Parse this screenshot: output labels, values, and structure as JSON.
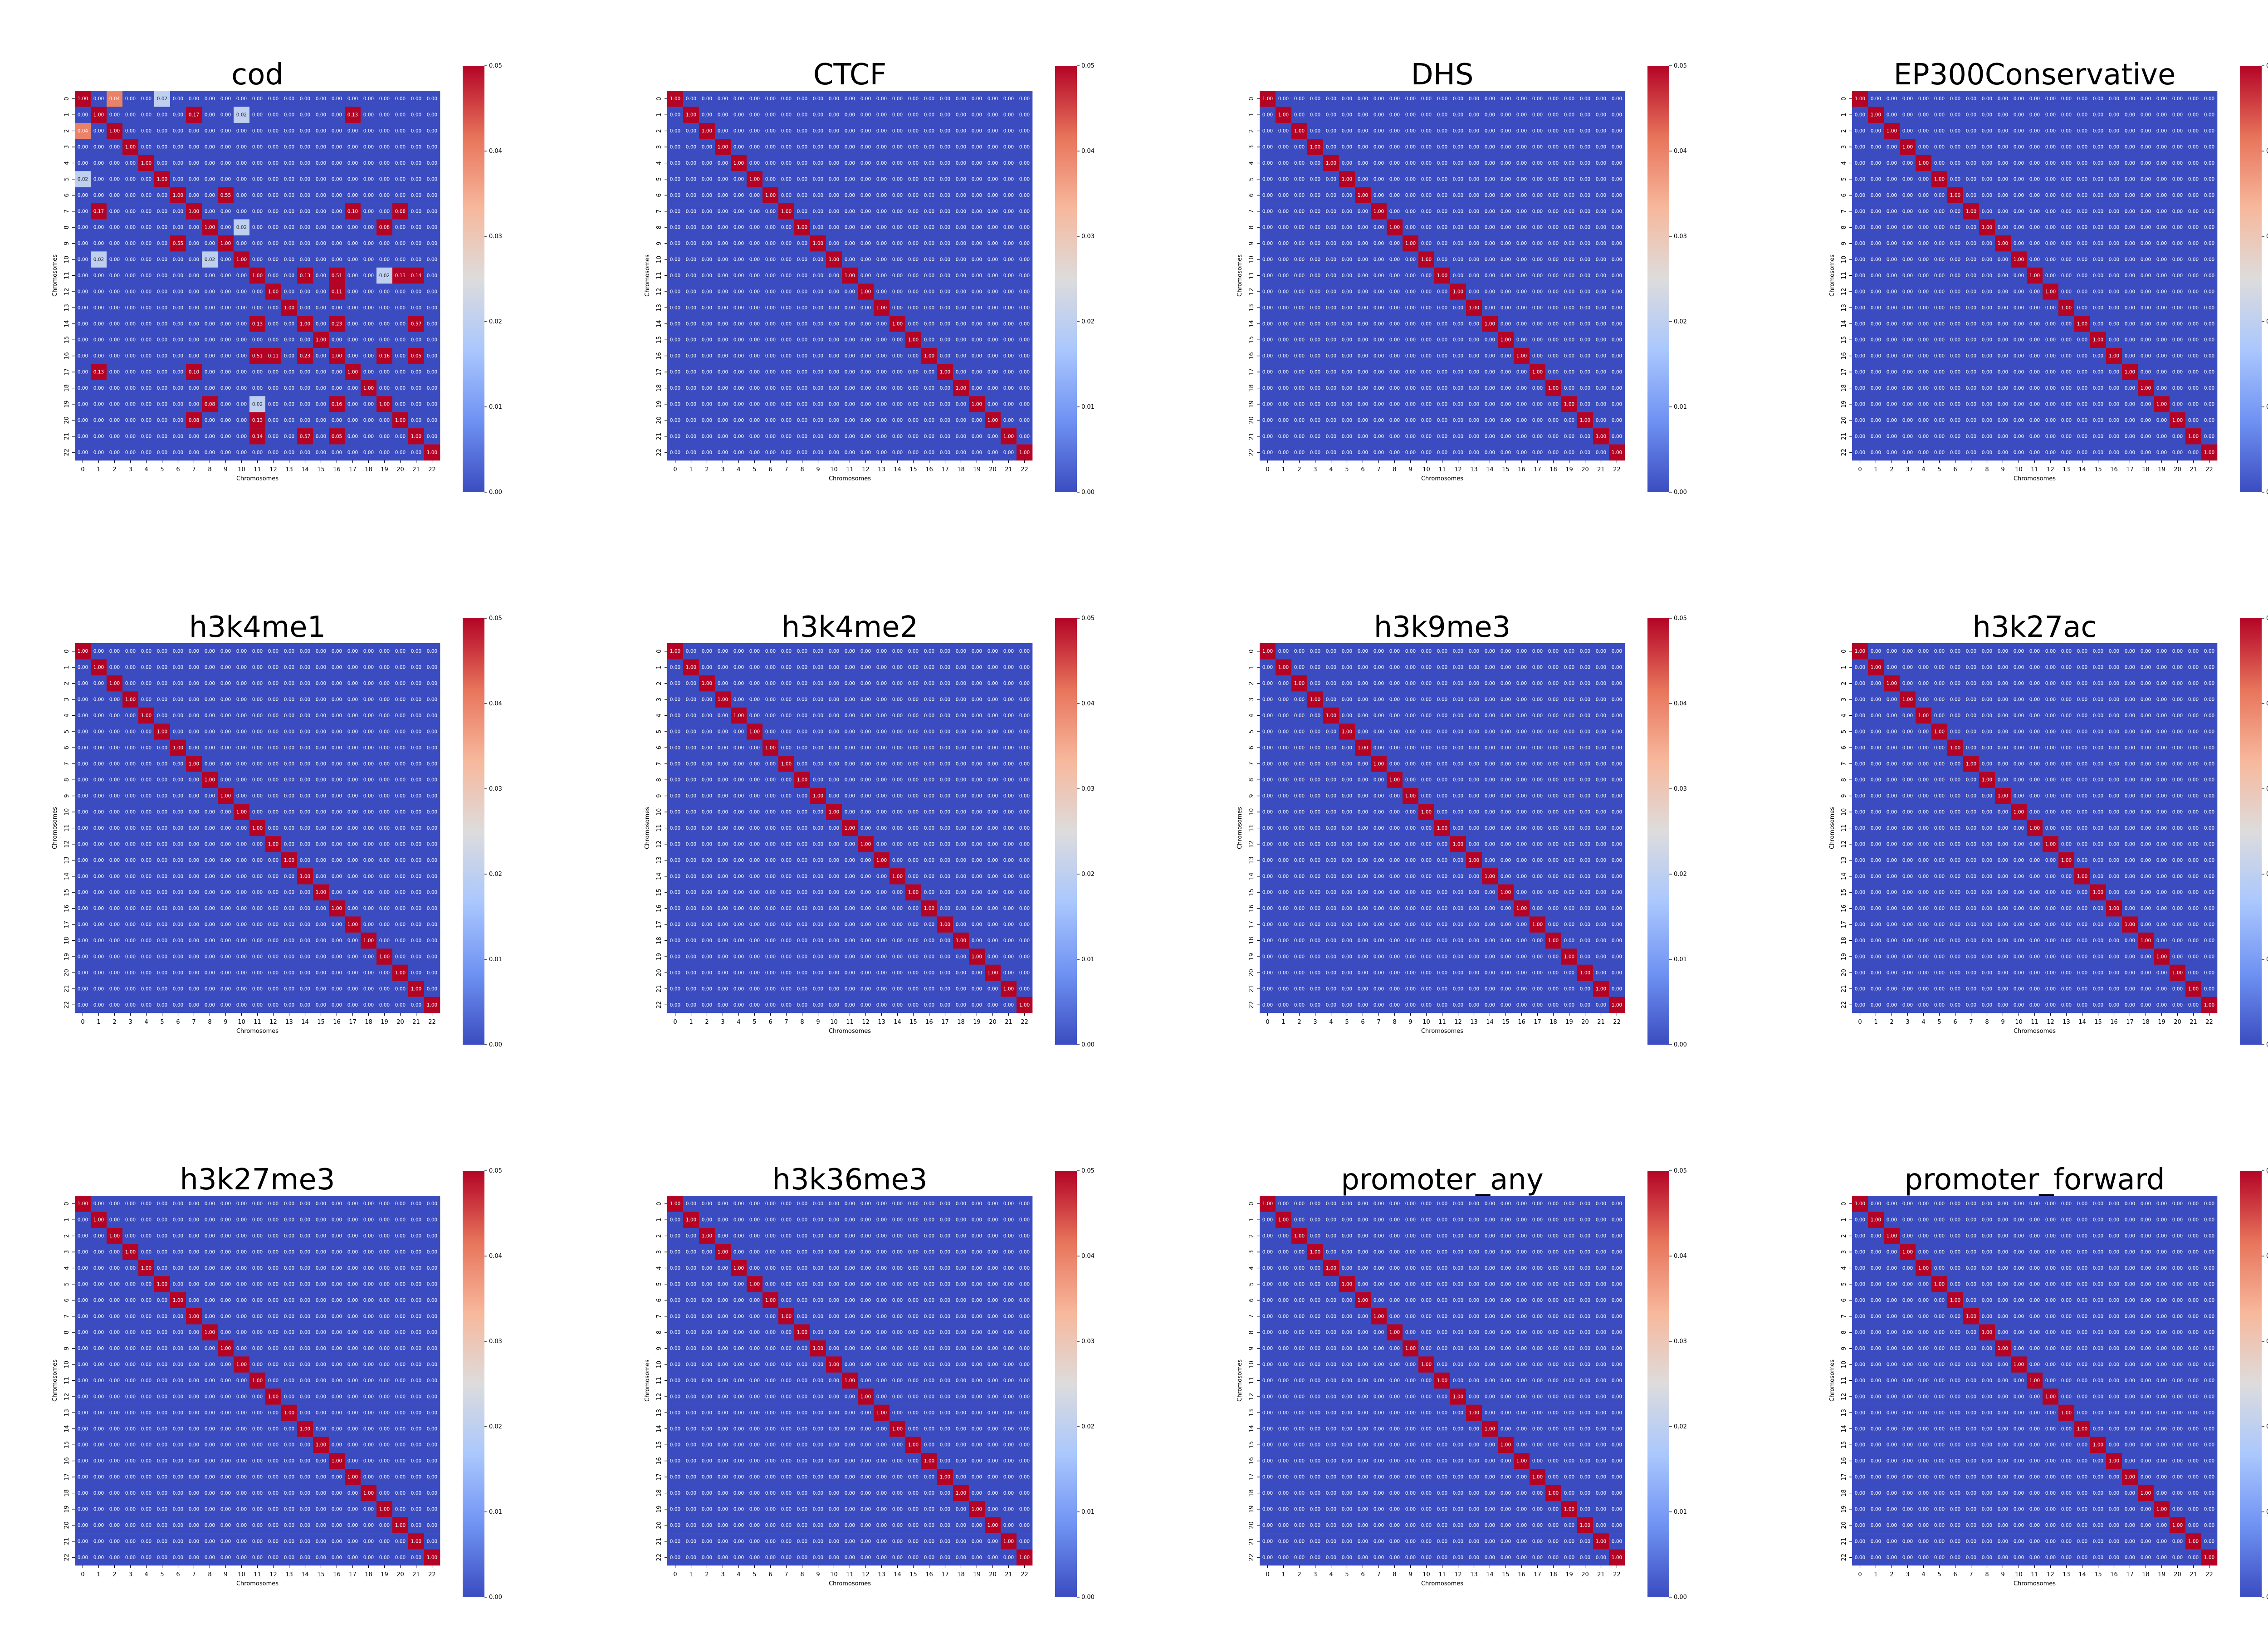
{
  "figure": {
    "description_note": "12 heatmaps of chromosome-by-chromosome correlation (23x23), colormap coolwarm, vmin 0.00, vmax 0.05"
  },
  "shared": {
    "type": "heatmap",
    "xlabel": "Chromosomes",
    "ylabel": "Chromosomes",
    "ticks": [
      "0",
      "1",
      "2",
      "3",
      "4",
      "5",
      "6",
      "7",
      "8",
      "9",
      "10",
      "11",
      "12",
      "13",
      "14",
      "15",
      "16",
      "17",
      "18",
      "19",
      "20",
      "21",
      "22"
    ],
    "colorbar_ticks": [
      "0.00",
      "0.01",
      "0.02",
      "0.03",
      "0.04",
      "0.05"
    ],
    "vmin": 0.0,
    "vmax": 0.05,
    "colormap": [
      "#3b4cc0",
      "#6f92f3",
      "#aac7fd",
      "#dddcdc",
      "#f7b89c",
      "#e7745b",
      "#b40426"
    ],
    "diagonal_value": 1.0,
    "background_value": 0.0
  },
  "chart_data": [
    {
      "title": "cod",
      "offdiagonal": [
        [
          0,
          2,
          0.04
        ],
        [
          2,
          0,
          0.04
        ],
        [
          0,
          5,
          0.02
        ],
        [
          5,
          0,
          0.02
        ],
        [
          1,
          7,
          0.17
        ],
        [
          7,
          1,
          0.17
        ],
        [
          1,
          10,
          0.02
        ],
        [
          10,
          1,
          0.02
        ],
        [
          1,
          17,
          0.13
        ],
        [
          17,
          1,
          0.13
        ],
        [
          6,
          9,
          0.55
        ],
        [
          9,
          6,
          0.55
        ],
        [
          7,
          17,
          0.1
        ],
        [
          17,
          7,
          0.1
        ],
        [
          7,
          20,
          0.08
        ],
        [
          20,
          7,
          0.08
        ],
        [
          8,
          10,
          0.02
        ],
        [
          10,
          8,
          0.02
        ],
        [
          11,
          14,
          0.13
        ],
        [
          14,
          11,
          0.13
        ],
        [
          11,
          16,
          0.51
        ],
        [
          16,
          11,
          0.51
        ],
        [
          11,
          19,
          0.02
        ],
        [
          19,
          11,
          0.02
        ],
        [
          11,
          20,
          0.13
        ],
        [
          20,
          11,
          0.13
        ],
        [
          11,
          21,
          0.14
        ],
        [
          21,
          11,
          0.14
        ],
        [
          14,
          16,
          0.23
        ],
        [
          16,
          14,
          0.23
        ],
        [
          14,
          21,
          0.57
        ],
        [
          21,
          14,
          0.57
        ],
        [
          16,
          19,
          0.16
        ],
        [
          19,
          16,
          0.16
        ],
        [
          16,
          21,
          0.05
        ],
        [
          21,
          16,
          0.05
        ],
        [
          8,
          19,
          0.08
        ],
        [
          19,
          8,
          0.08
        ],
        [
          12,
          16,
          0.11
        ],
        [
          16,
          12,
          0.11
        ]
      ]
    },
    {
      "title": "CTCF",
      "offdiagonal": []
    },
    {
      "title": "DHS",
      "offdiagonal": []
    },
    {
      "title": "EP300Conservative",
      "offdiagonal": []
    },
    {
      "title": "h3k4me1",
      "offdiagonal": []
    },
    {
      "title": "h3k4me2",
      "offdiagonal": []
    },
    {
      "title": "h3k9me3",
      "offdiagonal": []
    },
    {
      "title": "h3k27ac",
      "offdiagonal": []
    },
    {
      "title": "h3k27me3",
      "offdiagonal": []
    },
    {
      "title": "h3k36me3",
      "offdiagonal": []
    },
    {
      "title": "promoter_any",
      "offdiagonal": []
    },
    {
      "title": "promoter_forward",
      "offdiagonal": []
    }
  ]
}
